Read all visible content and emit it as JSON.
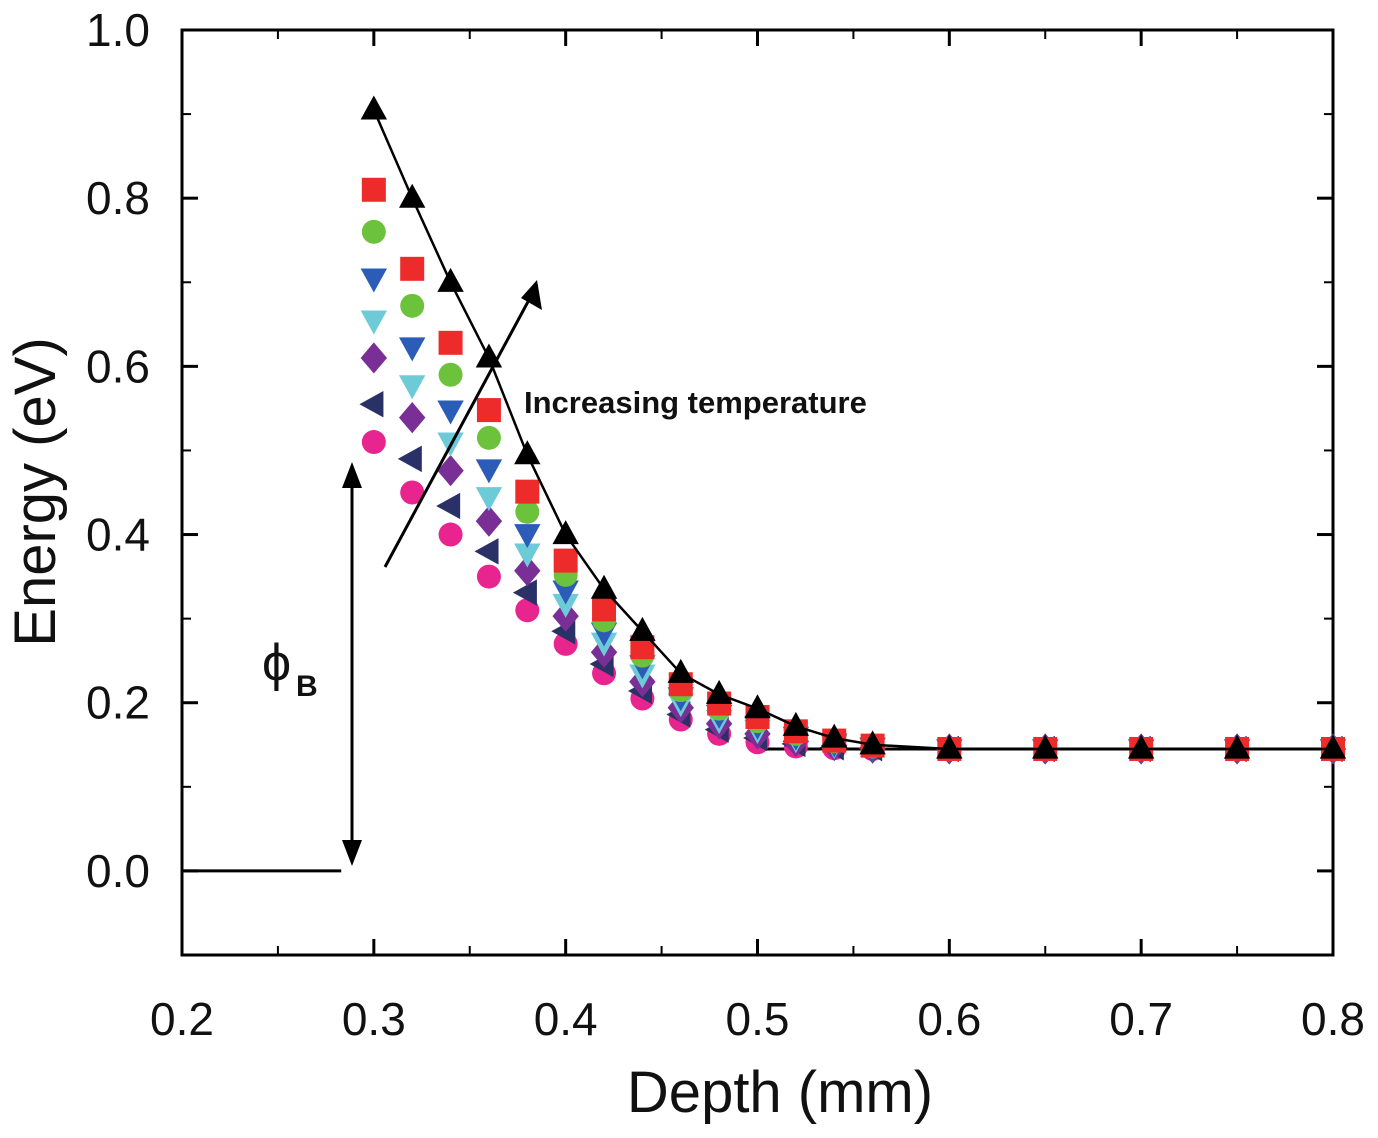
{
  "chart_data": {
    "type": "scatter",
    "x_label": "Depth (mm)",
    "y_label": "Energy (eV)",
    "annotation": "Increasing temperature",
    "phi_symbol": "ϕ",
    "phi_subscript": "B",
    "xlim": [
      0.2,
      0.8
    ],
    "ylim": [
      -0.1,
      1.0
    ],
    "xticks": [
      0.2,
      0.3,
      0.4,
      0.5,
      0.6,
      0.7,
      0.8
    ],
    "yticks": [
      {
        "value": 0,
        "label": "0.0"
      },
      0.2,
      0.4,
      0.6,
      0.8,
      {
        "value": 1,
        "label": "1.0"
      }
    ],
    "minor_ticks": true,
    "x": [
      0.3,
      0.32,
      0.34,
      0.36,
      0.38,
      0.4,
      0.42,
      0.44,
      0.46,
      0.48,
      0.5,
      0.52,
      0.54,
      0.56,
      0.6,
      0.65,
      0.7,
      0.75,
      0.8
    ],
    "series": [
      {
        "color": "#000000",
        "marker": "triangle-up",
        "line": true,
        "values": [
          0.905,
          0.8,
          0.7,
          0.61,
          0.495,
          0.4,
          0.335,
          0.285,
          0.235,
          0.21,
          0.193,
          0.172,
          0.158,
          0.15,
          0.145,
          0.145,
          0.145,
          0.145,
          0.145
        ]
      },
      {
        "color": "#ee2b2b",
        "marker": "square",
        "values": [
          0.81,
          0.716,
          0.628,
          0.548,
          0.451,
          0.369,
          0.311,
          0.266,
          0.222,
          0.199,
          0.183,
          0.166,
          0.155,
          0.149,
          0.145,
          0.145,
          0.145,
          0.145,
          0.145
        ]
      },
      {
        "color": "#6cc23a",
        "marker": "circle",
        "values": [
          0.76,
          0.672,
          0.59,
          0.515,
          0.427,
          0.352,
          0.298,
          0.256,
          0.215,
          0.193,
          0.178,
          0.163,
          0.154,
          0.148,
          0.145,
          0.145,
          0.145,
          0.145,
          0.145
        ]
      },
      {
        "color": "#2a5cb8",
        "marker": "triangle-down",
        "values": [
          0.705,
          0.623,
          0.548,
          0.478,
          0.401,
          0.334,
          0.284,
          0.245,
          0.207,
          0.186,
          0.173,
          0.16,
          0.152,
          0.147,
          0.145,
          0.145,
          0.145,
          0.145,
          0.145
        ]
      },
      {
        "color": "#6dcbd8",
        "marker": "triangle-down",
        "values": [
          0.655,
          0.578,
          0.51,
          0.445,
          0.378,
          0.318,
          0.272,
          0.234,
          0.2,
          0.18,
          0.168,
          0.157,
          0.15,
          0.147,
          0.145,
          0.145,
          0.145,
          0.145,
          0.145
        ]
      },
      {
        "color": "#7a2f96",
        "marker": "diamond",
        "values": [
          0.61,
          0.539,
          0.476,
          0.416,
          0.357,
          0.303,
          0.26,
          0.225,
          0.194,
          0.175,
          0.163,
          0.154,
          0.149,
          0.146,
          0.145,
          0.145,
          0.145,
          0.145,
          0.145
        ]
      },
      {
        "color": "#2a3166",
        "marker": "triangle-left",
        "values": [
          0.555,
          0.49,
          0.434,
          0.38,
          0.331,
          0.285,
          0.246,
          0.214,
          0.186,
          0.168,
          0.158,
          0.151,
          0.147,
          0.146,
          0.145,
          0.145,
          0.145,
          0.145,
          0.145
        ]
      },
      {
        "color": "#e8248f",
        "marker": "circle",
        "values": [
          0.51,
          0.45,
          0.4,
          0.35,
          0.31,
          0.27,
          0.235,
          0.205,
          0.18,
          0.163,
          0.153,
          0.148,
          0.146,
          0.145,
          0.145,
          0.145,
          0.145,
          0.145,
          0.145
        ]
      }
    ],
    "lines": [
      {
        "color": "#000000",
        "x": [
          0.2,
          0.283
        ],
        "values": [
          0,
          0
        ]
      },
      {
        "color": "#000000",
        "x": [
          0.5,
          0.8
        ],
        "values": [
          0.145,
          0.145
        ]
      }
    ]
  }
}
